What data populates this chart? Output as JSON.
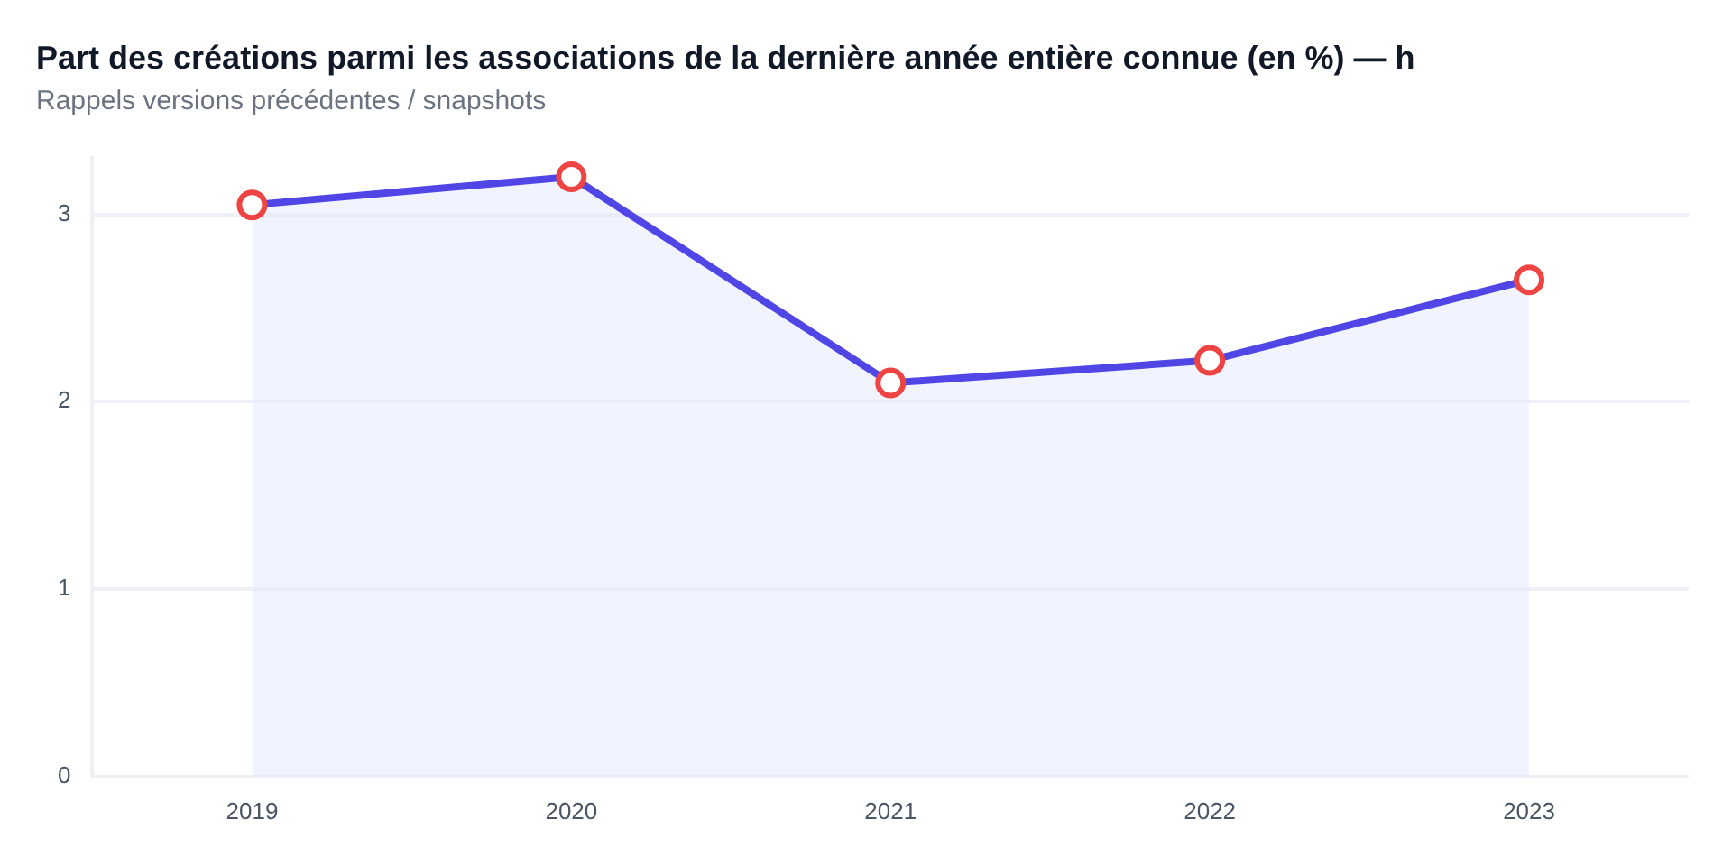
{
  "chart_data": {
    "type": "area",
    "title": "Part des créations parmi les associations de la dernière année entière connue (en %) — h",
    "subtitle": "Rappels versions précédentes / snapshots",
    "categories": [
      "2019",
      "2020",
      "2021",
      "2022",
      "2023"
    ],
    "series": [
      {
        "color": "#4f46e5",
        "values": [
          3.05,
          3.2,
          2.1,
          2.22,
          2.65
        ]
      }
    ],
    "ylim": [
      0,
      3.3
    ],
    "yticks": [
      0,
      1,
      2,
      3
    ],
    "grid": "y",
    "marker": "circle",
    "legend": false
  }
}
